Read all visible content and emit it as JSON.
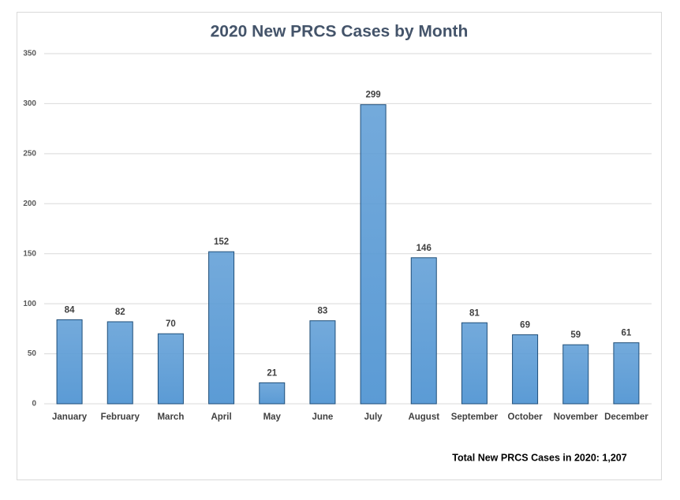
{
  "chart_data": {
    "type": "bar",
    "title": "2020 New PRCS Cases by Month",
    "categories": [
      "January",
      "February",
      "March",
      "April",
      "May",
      "June",
      "July",
      "August",
      "September",
      "October",
      "November",
      "December"
    ],
    "values": [
      84,
      82,
      70,
      152,
      21,
      83,
      299,
      146,
      81,
      69,
      59,
      61
    ],
    "color": "#5b9bd5",
    "ylim": [
      0,
      350
    ],
    "yticks": [
      0,
      50,
      100,
      150,
      200,
      250,
      300,
      350
    ],
    "grid": true,
    "annotation": "Total New PRCS Cases in 2020: 1,207"
  }
}
